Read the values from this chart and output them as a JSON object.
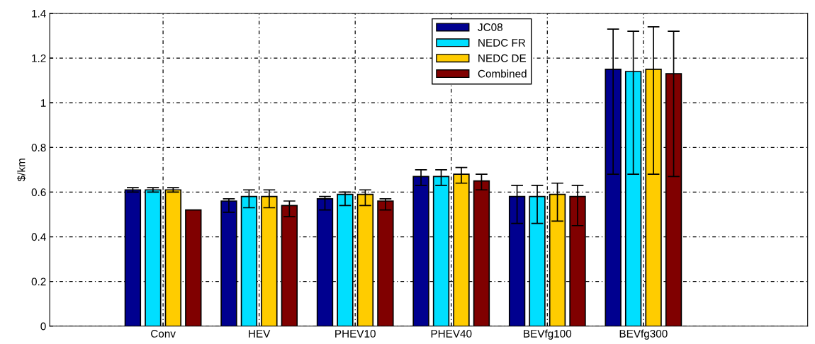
{
  "chart_data": {
    "type": "bar",
    "ylabel": "$/km",
    "categories": [
      "Conv",
      "HEV",
      "PHEV10",
      "PHEV40",
      "BEVfg100",
      "BEVfg300"
    ],
    "series": [
      {
        "name": "JC08",
        "color": "#00008f",
        "values": [
          0.61,
          0.56,
          0.57,
          0.67,
          0.58,
          1.15
        ],
        "errors": [
          [
            0.6,
            0.62
          ],
          [
            0.51,
            0.57
          ],
          [
            0.52,
            0.58
          ],
          [
            0.63,
            0.7
          ],
          [
            0.46,
            0.63
          ],
          [
            0.68,
            1.33
          ]
        ]
      },
      {
        "name": "NEDC FR",
        "color": "#00dfff",
        "values": [
          0.61,
          0.58,
          0.59,
          0.67,
          0.58,
          1.14
        ],
        "errors": [
          [
            0.6,
            0.62
          ],
          [
            0.53,
            0.61
          ],
          [
            0.54,
            0.6
          ],
          [
            0.63,
            0.7
          ],
          [
            0.46,
            0.63
          ],
          [
            0.68,
            1.32
          ]
        ]
      },
      {
        "name": "NEDC DE",
        "color": "#ffcc00",
        "values": [
          0.61,
          0.58,
          0.59,
          0.68,
          0.59,
          1.15
        ],
        "errors": [
          [
            0.6,
            0.62
          ],
          [
            0.53,
            0.61
          ],
          [
            0.54,
            0.61
          ],
          [
            0.64,
            0.71
          ],
          [
            0.47,
            0.64
          ],
          [
            0.68,
            1.34
          ]
        ]
      },
      {
        "name": "Combined",
        "color": "#800000",
        "values": [
          0.52,
          0.54,
          0.56,
          0.65,
          0.58,
          1.13
        ],
        "errors": [
          null,
          [
            0.49,
            0.56
          ],
          [
            0.52,
            0.57
          ],
          [
            0.61,
            0.68
          ],
          [
            0.45,
            0.63
          ],
          [
            0.67,
            1.32
          ]
        ]
      }
    ],
    "ylim": [
      0,
      1.4
    ],
    "yticks": [
      0,
      0.2,
      0.4,
      0.6,
      0.8,
      1,
      1.2,
      1.4
    ],
    "grid": true,
    "legend": "top"
  }
}
